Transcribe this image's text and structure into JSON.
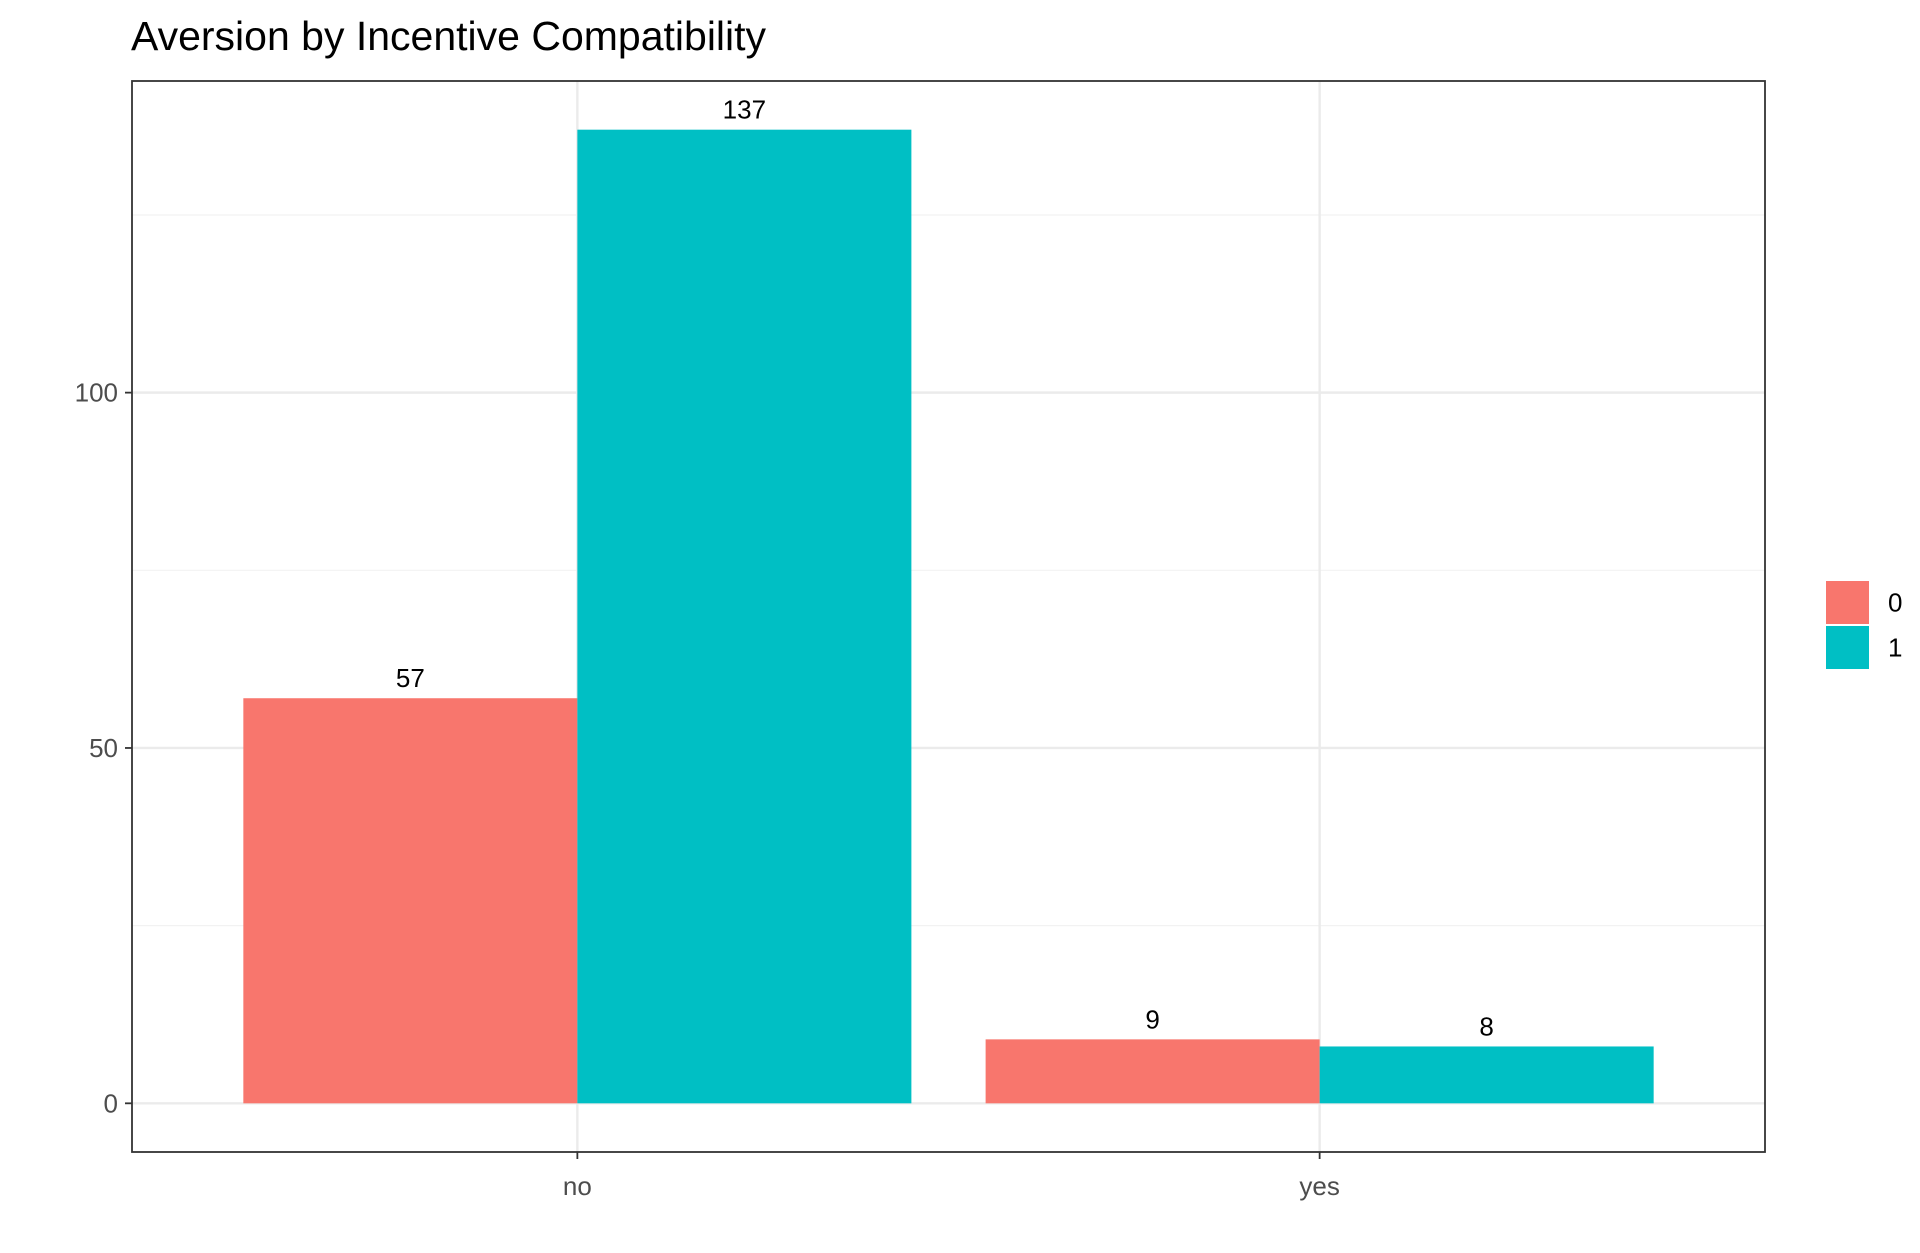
{
  "chart_data": {
    "type": "bar",
    "title": "Aversion by Incentive Compatibility",
    "xlabel": "",
    "ylabel": "",
    "categories": [
      "no",
      "yes"
    ],
    "series": [
      {
        "name": "0",
        "color": "#F8766D",
        "values": [
          57,
          9
        ]
      },
      {
        "name": "1",
        "color": "#00BFC4",
        "values": [
          137,
          8
        ]
      }
    ],
    "ylim": [
      -6.85,
      143.85
    ],
    "y_ticks": [
      0,
      50,
      100
    ],
    "y_minor_ticks": [
      25,
      75,
      125
    ],
    "grid": true,
    "legend": {
      "placement": "right",
      "title": ""
    },
    "data_labels": true
  }
}
